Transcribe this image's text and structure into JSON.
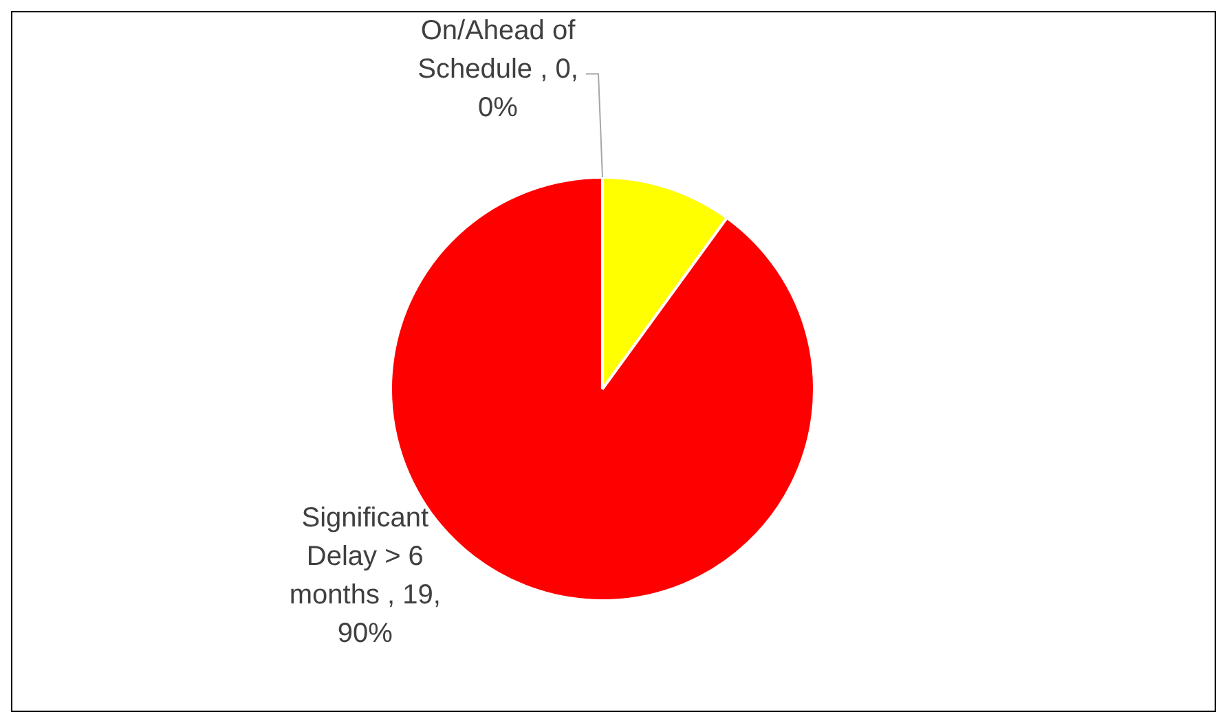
{
  "chart_data": {
    "type": "pie",
    "categories": [
      "On/Ahead of Schedule , 0, 0%",
      null,
      "Significant Delay > 6 months , 19, 90%"
    ],
    "values": [
      0,
      10,
      90
    ],
    "colors": [
      "#00b050",
      "#ffff00",
      "#ff0000"
    ],
    "legend": false
  }
}
